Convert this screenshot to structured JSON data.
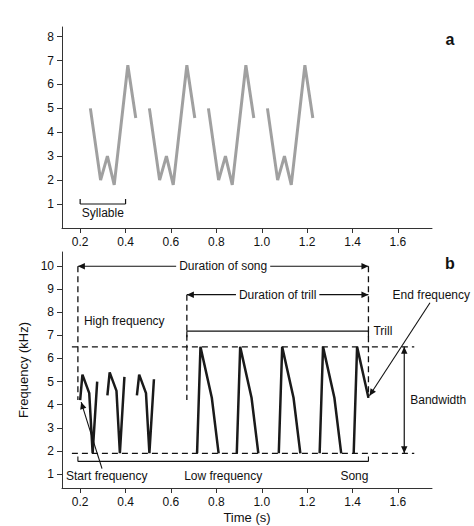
{
  "chart_data": [
    {
      "type": "line",
      "panel": "a",
      "color": "#808080",
      "xlim": [
        0.12,
        1.75
      ],
      "xticks": [
        0.2,
        0.4,
        0.6,
        0.8,
        {
          "value": 1,
          "label": "1.0"
        },
        1.2,
        1.4,
        1.6
      ],
      "ylim": [
        0,
        8.4
      ],
      "yticks": [
        1,
        2,
        3,
        4,
        5,
        6,
        7,
        8
      ],
      "x": [
        0.245,
        0.29,
        0.32,
        0.35,
        0.41,
        0.445,
        null,
        0.505,
        0.55,
        0.58,
        0.61,
        0.67,
        0.705,
        null,
        0.765,
        0.81,
        0.84,
        0.87,
        0.93,
        0.965,
        null,
        1.025,
        1.07,
        1.1,
        1.13,
        1.19,
        1.225
      ],
      "values": [
        5.0,
        2.0,
        3.0,
        1.8,
        6.8,
        4.6,
        null,
        5.0,
        2.0,
        3.0,
        1.8,
        6.8,
        4.6,
        null,
        5.0,
        2.0,
        3.0,
        1.8,
        6.8,
        4.6,
        null,
        5.0,
        2.0,
        3.0,
        1.8,
        6.8,
        4.6
      ],
      "syllable": {
        "label": "Syllable",
        "x": [
          0.2,
          0.4
        ]
      }
    },
    {
      "type": "line",
      "panel": "b",
      "color": "#1a1a1a",
      "x_label": "Time (s)",
      "y_label": "Frequency (kHz)",
      "xlim": [
        0.12,
        1.75
      ],
      "xticks": [
        0.2,
        0.4,
        0.6,
        0.8,
        {
          "value": 1,
          "label": "1.0"
        },
        1.2,
        1.4,
        1.6
      ],
      "ylim": [
        0.4,
        10.6
      ],
      "yticks": [
        1,
        2,
        3,
        4,
        5,
        6,
        7,
        8,
        9,
        10
      ],
      "x": [
        0.2,
        0.21,
        0.24,
        0.255,
        0.275,
        null,
        0.32,
        0.33,
        0.36,
        0.375,
        0.395,
        null,
        0.45,
        0.46,
        0.49,
        0.505,
        0.525,
        null,
        0.715,
        0.73,
        0.78,
        0.81,
        null,
        0.89,
        0.905,
        0.955,
        0.985,
        null,
        1.075,
        1.09,
        1.14,
        1.17,
        null,
        1.255,
        1.27,
        1.32,
        1.35,
        null,
        1.405,
        1.42,
        1.47
      ],
      "values": [
        4.2,
        5.3,
        4.5,
        1.9,
        5.0,
        null,
        4.4,
        5.4,
        4.6,
        1.9,
        5.2,
        null,
        4.4,
        5.3,
        4.5,
        1.9,
        5.1,
        null,
        1.9,
        6.5,
        4.3,
        1.9,
        null,
        1.9,
        6.5,
        4.3,
        1.9,
        null,
        1.9,
        6.5,
        4.3,
        1.9,
        null,
        1.9,
        6.5,
        4.3,
        1.9,
        null,
        1.9,
        6.5,
        4.3
      ],
      "song": {
        "label": "Song",
        "duration_label": "Duration of song",
        "x": [
          0.19,
          1.47
        ]
      },
      "trill": {
        "label": "Trill",
        "duration_label": "Duration of trill",
        "x": [
          0.67,
          1.47
        ]
      },
      "high_frequency": {
        "label": "High frequency",
        "value": 6.5
      },
      "low_frequency": {
        "label": "Low frequency",
        "value": 1.9
      },
      "start_frequency": {
        "label": "Start frequency",
        "x": 0.2,
        "value": 4.2
      },
      "end_frequency": {
        "label": "End frequency",
        "x": 1.47,
        "value": 4.3
      },
      "bandwidth": "Bandwidth"
    }
  ]
}
